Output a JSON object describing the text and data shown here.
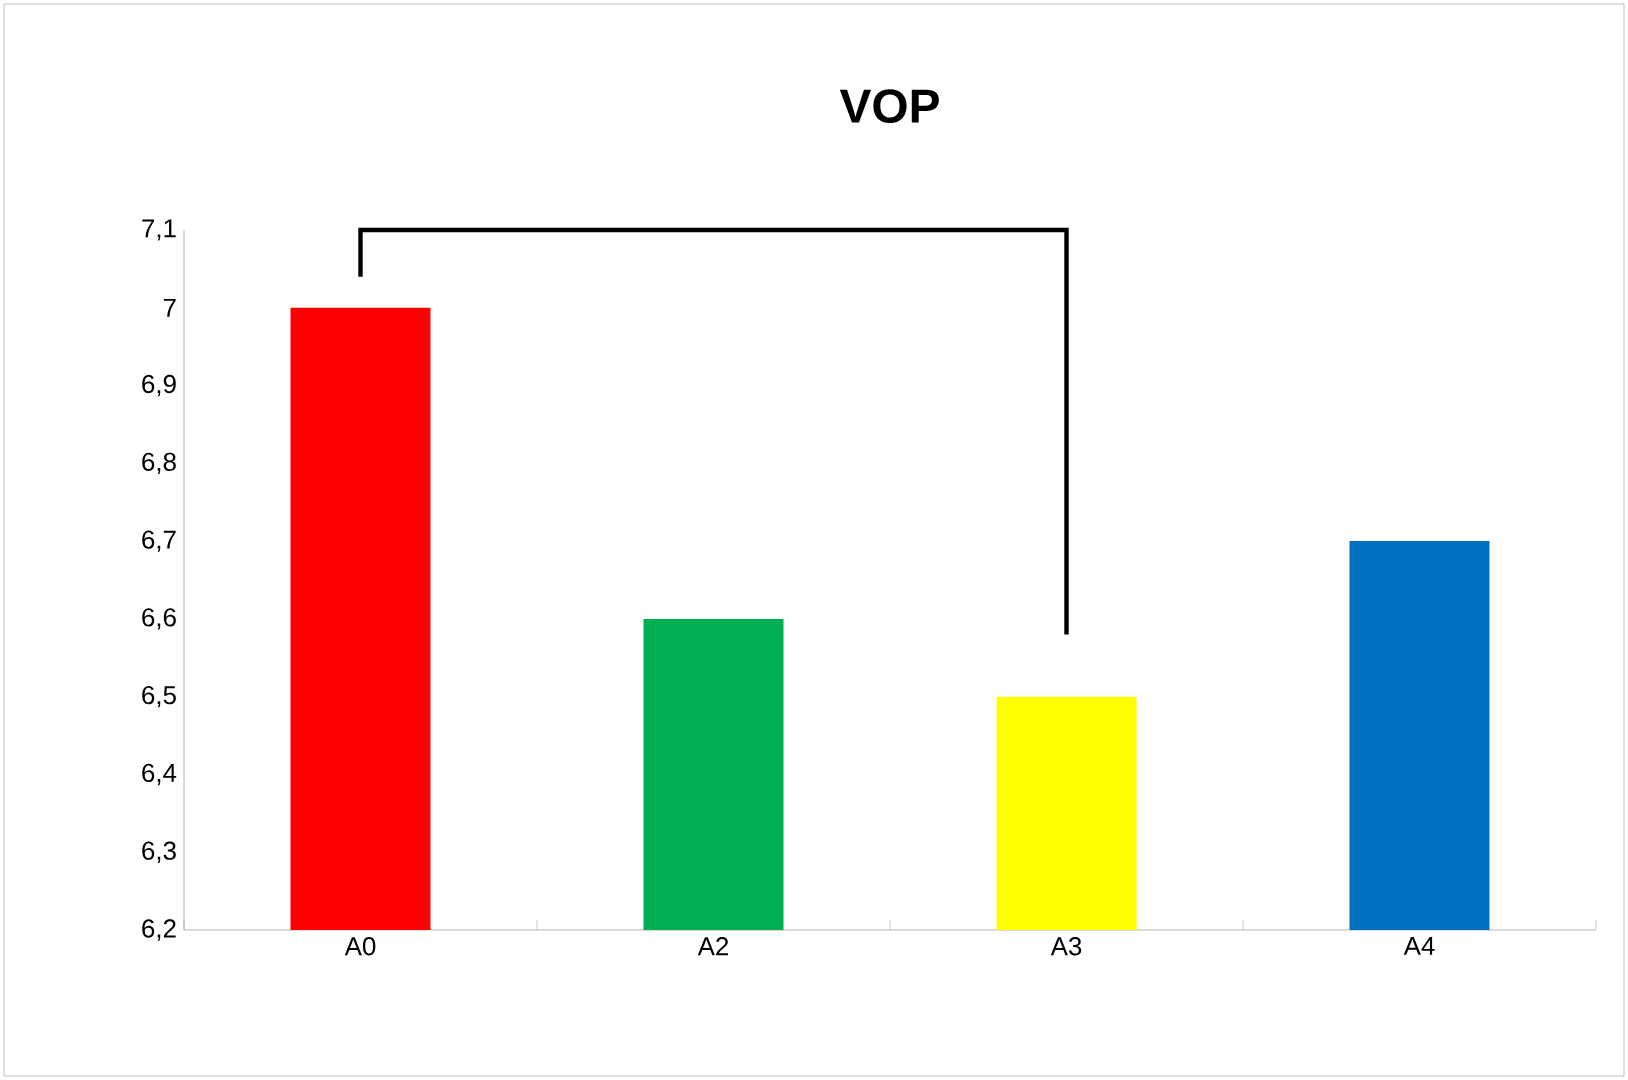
{
  "chart_data": {
    "type": "bar",
    "title": "VOP",
    "categories": [
      "A0",
      "A2",
      "A3",
      "A4"
    ],
    "values": [
      7.0,
      6.6,
      6.5,
      6.7
    ],
    "colors": [
      "#ff0000",
      "#00b050",
      "#ffff00",
      "#0070c0"
    ],
    "ylim": [
      6.2,
      7.1
    ],
    "yticks": [
      {
        "value": 6.2,
        "label": "6,2"
      },
      {
        "value": 6.3,
        "label": "6,3"
      },
      {
        "value": 6.4,
        "label": "6,4"
      },
      {
        "value": 6.5,
        "label": "6,5"
      },
      {
        "value": 6.6,
        "label": "6,6"
      },
      {
        "value": 6.7,
        "label": "6,7"
      },
      {
        "value": 6.8,
        "label": "6,8"
      },
      {
        "value": 6.9,
        "label": "6,9"
      },
      7,
      {
        "value": 7.1,
        "label": "7,1"
      }
    ],
    "grid": false
  }
}
